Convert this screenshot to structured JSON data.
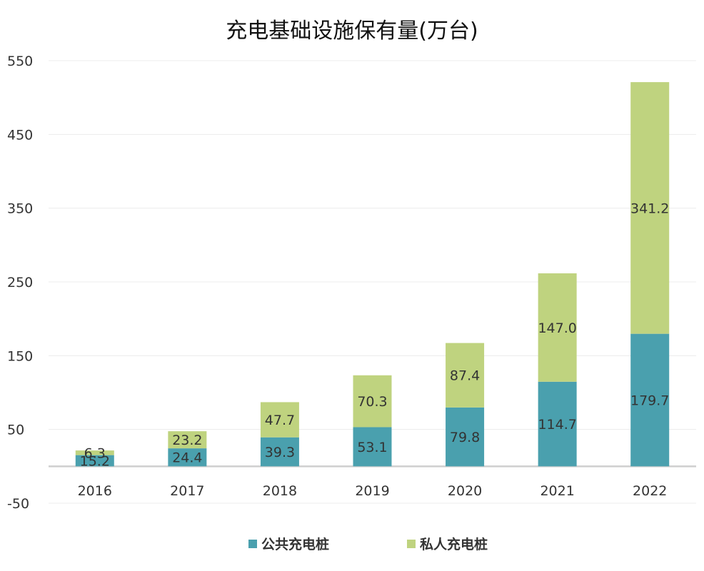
{
  "chart_data": {
    "type": "bar",
    "stacked": true,
    "title": "充电基础设施保有量(万台)",
    "xlabel": "",
    "ylabel": "",
    "categories": [
      "2016",
      "2017",
      "2018",
      "2019",
      "2020",
      "2021",
      "2022"
    ],
    "series": [
      {
        "name": "公共充电桩",
        "color": "#4aa0ae",
        "values": [
          15.2,
          24.4,
          39.3,
          53.1,
          79.8,
          114.7,
          179.7
        ]
      },
      {
        "name": "私人充电桩",
        "color": "#bfd37f",
        "values": [
          6.3,
          23.2,
          47.7,
          70.3,
          87.4,
          147.0,
          341.2
        ]
      }
    ],
    "ylim": [
      -50,
      550
    ],
    "yticks": [
      550,
      450,
      350,
      250,
      150,
      50,
      -50
    ],
    "grid": true,
    "legend_position": "bottom"
  }
}
